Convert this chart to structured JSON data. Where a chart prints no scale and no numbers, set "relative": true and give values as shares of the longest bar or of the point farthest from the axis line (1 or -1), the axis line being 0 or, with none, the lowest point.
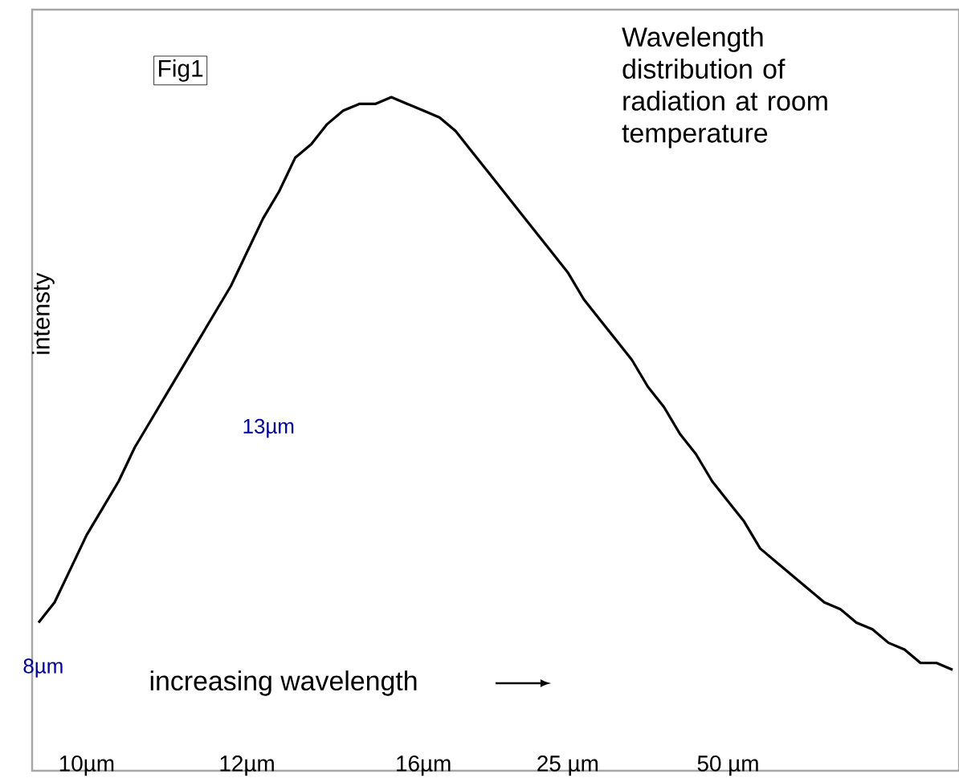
{
  "chart_data": {
    "type": "line",
    "relative": true,
    "title": "Wavelength distribution of radiation at room temperature",
    "xlabel": "increasing wavelength",
    "ylabel": "intensty",
    "annotations": [
      "Fig1",
      "13µm",
      "8µm"
    ],
    "categories": [
      null,
      null,
      null,
      "10µm",
      null,
      null,
      null,
      null,
      null,
      null,
      null,
      null,
      null,
      "12µm",
      null,
      null,
      null,
      null,
      null,
      null,
      null,
      null,
      null,
      null,
      "16µm",
      null,
      null,
      null,
      null,
      null,
      null,
      null,
      null,
      "25 µm",
      null,
      null,
      null,
      null,
      null,
      null,
      null,
      null,
      null,
      "50 µm",
      null,
      null,
      null,
      null,
      null,
      null,
      null,
      null,
      null,
      null,
      null,
      null,
      null,
      null
    ],
    "series": [
      {
        "color": "#000000",
        "values": [
          0.22,
          0.25,
          0.3,
          0.35,
          0.39,
          0.43,
          0.48,
          0.52,
          0.56,
          0.6,
          0.64,
          0.68,
          0.72,
          0.77,
          0.82,
          0.86,
          0.91,
          0.93,
          0.96,
          0.98,
          0.99,
          0.99,
          1.0,
          0.99,
          0.98,
          0.97,
          0.95,
          0.92,
          0.89,
          0.86,
          0.83,
          0.8,
          0.77,
          0.74,
          0.7,
          0.67,
          0.64,
          0.61,
          0.57,
          0.54,
          0.5,
          0.47,
          0.43,
          0.4,
          0.37,
          0.33,
          0.31,
          0.29,
          0.27,
          0.25,
          0.24,
          0.22,
          0.21,
          0.19,
          0.18,
          0.16,
          0.16,
          0.15
        ]
      }
    ]
  }
}
